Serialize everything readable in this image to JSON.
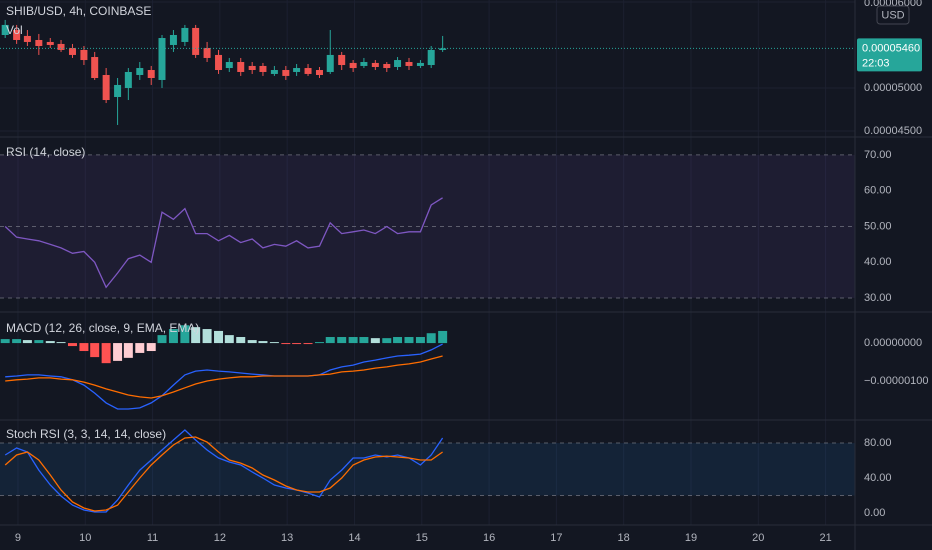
{
  "header": {
    "symbol": "SHIB/USD, 4h, COINBASE",
    "volume_label": "Vol",
    "currency": "USD"
  },
  "chart_data": [
    {
      "type": "candlestick",
      "up_color": "#26a69a",
      "down_color": "#ef5350",
      "x": [
        8.81,
        8.98,
        9.14,
        9.31,
        9.48,
        9.64,
        9.81,
        9.98,
        10.14,
        10.31,
        10.48,
        10.64,
        10.81,
        10.98,
        11.14,
        11.31,
        11.48,
        11.64,
        11.81,
        11.98,
        12.14,
        12.31,
        12.48,
        12.64,
        12.81,
        12.98,
        13.14,
        13.31,
        13.48,
        13.64,
        13.81,
        13.98,
        14.14,
        14.31,
        14.48,
        14.64,
        14.81,
        14.98,
        15.14,
        15.31
      ],
      "open": [
        5.616e-05,
        5.674e-05,
        5.605e-05,
        5.558e-05,
        5.535e-05,
        5.512e-05,
        5.465e-05,
        5.442e-05,
        5.36e-05,
        5.151e-05,
        4.895e-05,
        5e-05,
        5.151e-05,
        5.209e-05,
        5.093e-05,
        5.5e-05,
        5.535e-05,
        5.698e-05,
        5.465e-05,
        5.384e-05,
        5.232e-05,
        5.302e-05,
        5.256e-05,
        5.256e-05,
        5.163e-05,
        5.209e-05,
        5.186e-05,
        5.232e-05,
        5.209e-05,
        5.186e-05,
        5.384e-05,
        5.291e-05,
        5.256e-05,
        5.291e-05,
        5.279e-05,
        5.244e-05,
        5.302e-05,
        5.256e-05,
        5.267e-05,
        5.442e-05
      ],
      "high": [
        5.791e-05,
        5.733e-05,
        5.674e-05,
        5.628e-05,
        5.581e-05,
        5.558e-05,
        5.512e-05,
        5.488e-05,
        5.419e-05,
        5.232e-05,
        5.116e-05,
        5.232e-05,
        5.302e-05,
        5.256e-05,
        5.616e-05,
        5.674e-05,
        5.733e-05,
        5.733e-05,
        5.535e-05,
        5.442e-05,
        5.349e-05,
        5.349e-05,
        5.302e-05,
        5.291e-05,
        5.256e-05,
        5.256e-05,
        5.279e-05,
        5.279e-05,
        5.244e-05,
        5.674e-05,
        5.419e-05,
        5.325e-05,
        5.349e-05,
        5.325e-05,
        5.302e-05,
        5.36e-05,
        5.349e-05,
        5.325e-05,
        5.488e-05,
        5.605e-05
      ],
      "low": [
        5.581e-05,
        5.512e-05,
        5.488e-05,
        5.384e-05,
        5.465e-05,
        5.419e-05,
        5.349e-05,
        5.267e-05,
        5.093e-05,
        4.825e-05,
        4.57e-05,
        4.86e-05,
        5.093e-05,
        5.035e-05,
        5e-05,
        5.419e-05,
        5.488e-05,
        5.349e-05,
        5.302e-05,
        5.163e-05,
        5.186e-05,
        5.14e-05,
        5.163e-05,
        5.14e-05,
        5.14e-05,
        5.093e-05,
        5.14e-05,
        5.14e-05,
        5.116e-05,
        5.163e-05,
        5.209e-05,
        5.186e-05,
        5.232e-05,
        5.209e-05,
        5.186e-05,
        5.209e-05,
        5.209e-05,
        5.232e-05,
        5.232e-05,
        5.419e-05
      ],
      "close": [
        5.733e-05,
        5.558e-05,
        5.535e-05,
        5.488e-05,
        5.5e-05,
        5.442e-05,
        5.384e-05,
        5.325e-05,
        5.116e-05,
        4.86e-05,
        5.035e-05,
        5.186e-05,
        5.232e-05,
        5.116e-05,
        5.581e-05,
        5.616e-05,
        5.698e-05,
        5.384e-05,
        5.349e-05,
        5.209e-05,
        5.302e-05,
        5.186e-05,
        5.209e-05,
        5.186e-05,
        5.209e-05,
        5.14e-05,
        5.232e-05,
        5.163e-05,
        5.151e-05,
        5.384e-05,
        5.267e-05,
        5.232e-05,
        5.302e-05,
        5.244e-05,
        5.232e-05,
        5.325e-05,
        5.256e-05,
        5.291e-05,
        5.442e-05,
        5.46e-05
      ],
      "xlim": [
        8.733,
        21.437
      ],
      "xticks": [
        9,
        10,
        11,
        12,
        13,
        14,
        15,
        16,
        17,
        18,
        19,
        20,
        21
      ],
      "ylim": [
        4.43e-05,
        6.023e-05
      ],
      "yticks": [
        {
          "value": 6e-05,
          "label": "0.00006000"
        },
        {
          "value": 5e-05,
          "label": "0.00005000"
        },
        {
          "value": 4.5e-05,
          "label": "0.00004500"
        }
      ],
      "last_price": {
        "value": 5.46e-05,
        "label": "0.00005460"
      },
      "countdown": "22:03",
      "grid": true
    },
    {
      "type": "line",
      "title": "RSI (14, close)",
      "band": [
        30,
        70
      ],
      "band_color": "#7e57c2",
      "levels": [
        70,
        50,
        30
      ],
      "series": [
        {
          "color": "#7e57c2",
          "values": [
            50,
            47,
            46.5,
            46,
            45,
            44,
            42.5,
            43,
            40,
            33,
            37,
            41,
            42,
            40,
            54,
            52,
            55,
            48,
            48,
            46,
            47.5,
            45.5,
            46.5,
            44,
            45,
            44.5,
            46,
            44,
            44.5,
            51,
            48,
            48.5,
            49,
            48,
            50,
            48,
            48.5,
            48.5,
            56,
            58
          ]
        }
      ],
      "ylim": [
        26.1,
        75.0
      ],
      "yticks": [
        {
          "value": 70,
          "label": "70.00"
        },
        {
          "value": 60,
          "label": "60.00"
        },
        {
          "value": 50,
          "label": "50.00"
        },
        {
          "value": 40,
          "label": "40.00"
        },
        {
          "value": 30,
          "label": "30.00"
        }
      ]
    },
    {
      "type": "macd",
      "title": "MACD (12, 26, close, 9, EMA, EMA)",
      "histogram": {
        "colors": [
          "#26a69a",
          "#b2dfdb",
          "#ff5252",
          "#ffcdd2"
        ],
        "values": [
          1.05e-07,
          1.05e-07,
          7.9e-08,
          7.9e-08,
          5.3e-08,
          2.6e-08,
          -7.9e-08,
          -2.1e-07,
          -3.7e-07,
          -5.3e-07,
          -4.7e-07,
          -3.9e-07,
          -2.6e-07,
          -2.1e-07,
          2.1e-07,
          3.7e-07,
          4.7e-07,
          4.2e-07,
          3.7e-07,
          3.2e-07,
          2.1e-07,
          1.6e-07,
          7.9e-08,
          5.3e-08,
          2.6e-08,
          -2.6e-08,
          -2.6e-08,
          -2.6e-08,
          2.6e-08,
          1.6e-07,
          1.6e-07,
          1.6e-07,
          1.6e-07,
          1.3e-07,
          1.3e-07,
          1.6e-07,
          1.6e-07,
          1.6e-07,
          2.6e-07,
          3.2e-07
        ]
      },
      "series": [
        {
          "color": "#2962ff",
          "values": [
            -8.9e-07,
            -8.7e-07,
            -8.4e-07,
            -8.4e-07,
            -8.7e-07,
            -8.9e-07,
            -9.7e-07,
            -1.11e-06,
            -1.32e-06,
            -1.58e-06,
            -1.74e-06,
            -1.74e-06,
            -1.71e-06,
            -1.58e-06,
            -1.39e-06,
            -1.11e-06,
            -8.4e-07,
            -7.4e-07,
            -7.1e-07,
            -7.4e-07,
            -7.6e-07,
            -7.9e-07,
            -8.2e-07,
            -8.4e-07,
            -8.7e-07,
            -8.7e-07,
            -8.7e-07,
            -8.7e-07,
            -8.4e-07,
            -7.1e-07,
            -6.3e-07,
            -5.8e-07,
            -5e-07,
            -4.5e-07,
            -3.9e-07,
            -3.4e-07,
            -3.2e-07,
            -2.9e-07,
            -1.8e-07,
            -2.6e-08
          ]
        },
        {
          "color": "#ff6d00",
          "values": [
            -1e-06,
            -9.7e-07,
            -9.5e-07,
            -9.2e-07,
            -9.2e-07,
            -9.5e-07,
            -9.7e-07,
            -1.03e-06,
            -1.11e-06,
            -1.21e-06,
            -1.29e-06,
            -1.37e-06,
            -1.42e-06,
            -1.45e-06,
            -1.39e-06,
            -1.29e-06,
            -1.18e-06,
            -1.08e-06,
            -1e-06,
            -9.5e-07,
            -9.2e-07,
            -8.9e-07,
            -8.9e-07,
            -8.7e-07,
            -8.7e-07,
            -8.7e-07,
            -8.7e-07,
            -8.7e-07,
            -8.4e-07,
            -8.2e-07,
            -7.6e-07,
            -7.4e-07,
            -7.1e-07,
            -6.6e-07,
            -6.3e-07,
            -5.8e-07,
            -5.5e-07,
            -5e-07,
            -4.2e-07,
            -3.4e-07
          ]
        }
      ],
      "ylim": [
        -2.03e-06,
        8.2e-07
      ],
      "yticks": [
        {
          "value": 0,
          "label": "0.00000000"
        },
        {
          "value": -1e-06,
          "label": "−0.00000100"
        }
      ]
    },
    {
      "type": "line",
      "title": "Stoch RSI (3, 3, 14, 14, close)",
      "band": [
        20,
        80
      ],
      "band_color": "#2196f3",
      "levels": [
        80,
        20
      ],
      "series": [
        {
          "color": "#2962ff",
          "values": [
            66.3,
            74.3,
            69.7,
            49.1,
            32,
            19.4,
            9.1,
            3.4,
            1.1,
            1.1,
            14.9,
            32,
            49.1,
            60.6,
            72,
            83.4,
            94.9,
            83.4,
            72,
            62.9,
            58.3,
            54.9,
            46.9,
            40,
            32,
            28.6,
            26.3,
            22.9,
            18.3,
            37.7,
            49.1,
            62.9,
            62.9,
            66.3,
            64,
            66.3,
            62.9,
            54.9,
            66.3,
            85.7
          ]
        },
        {
          "color": "#ff6d00",
          "values": [
            54.9,
            66.3,
            69.7,
            60.6,
            43.4,
            26.3,
            12.6,
            5.7,
            2.3,
            3.4,
            9.1,
            24,
            40,
            54.9,
            66.3,
            77.7,
            85.7,
            86.9,
            81.1,
            69.7,
            60.6,
            57.1,
            51.4,
            43.4,
            37.7,
            30.9,
            26.3,
            24,
            24,
            28.6,
            40,
            54.9,
            60.6,
            64,
            65.1,
            64,
            62.9,
            60.6,
            60.6,
            69.7
          ]
        }
      ],
      "ylim": [
        -13.7,
        106.3
      ],
      "yticks": [
        {
          "value": 80,
          "label": "80.00"
        },
        {
          "value": 40,
          "label": "40.00"
        },
        {
          "value": 0,
          "label": "0.00"
        }
      ]
    }
  ]
}
